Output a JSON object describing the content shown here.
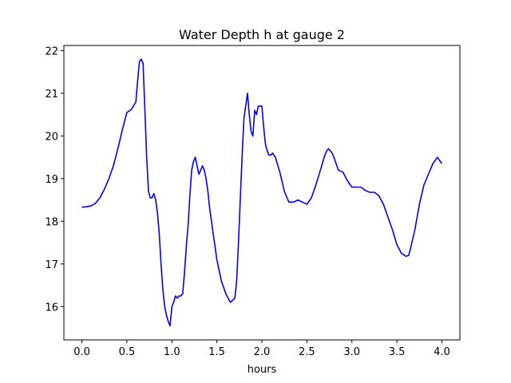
{
  "chart_data": {
    "type": "line",
    "title": "Water Depth h at gauge 2",
    "xlabel": "hours",
    "ylabel": "",
    "xlim": [
      -0.2,
      4.2
    ],
    "ylim": [
      15.22,
      22.12
    ],
    "xticks": [
      0.0,
      0.5,
      1.0,
      1.5,
      2.0,
      2.5,
      3.0,
      3.5,
      4.0
    ],
    "xtick_labels": [
      "0.0",
      "0.5",
      "1.0",
      "1.5",
      "2.0",
      "2.5",
      "3.0",
      "3.5",
      "4.0"
    ],
    "yticks": [
      16,
      17,
      18,
      19,
      20,
      21,
      22
    ],
    "ytick_labels": [
      "16",
      "17",
      "18",
      "19",
      "20",
      "21",
      "22"
    ],
    "grid": false,
    "series": [
      {
        "color": "#0000ff",
        "x": [
          0.0,
          0.05,
          0.1,
          0.15,
          0.2,
          0.25,
          0.3,
          0.35,
          0.4,
          0.45,
          0.5,
          0.55,
          0.6,
          0.62,
          0.64,
          0.66,
          0.68,
          0.7,
          0.72,
          0.74,
          0.76,
          0.78,
          0.8,
          0.82,
          0.84,
          0.86,
          0.88,
          0.9,
          0.92,
          0.94,
          0.96,
          0.98,
          1.0,
          1.02,
          1.04,
          1.06,
          1.08,
          1.1,
          1.12,
          1.14,
          1.16,
          1.18,
          1.2,
          1.22,
          1.24,
          1.26,
          1.28,
          1.3,
          1.32,
          1.34,
          1.36,
          1.38,
          1.4,
          1.42,
          1.44,
          1.46,
          1.48,
          1.5,
          1.52,
          1.55,
          1.6,
          1.65,
          1.7,
          1.72,
          1.74,
          1.76,
          1.78,
          1.8,
          1.82,
          1.84,
          1.86,
          1.88,
          1.9,
          1.92,
          1.94,
          1.96,
          1.98,
          2.0,
          2.02,
          2.04,
          2.06,
          2.08,
          2.1,
          2.12,
          2.15,
          2.2,
          2.25,
          2.3,
          2.35,
          2.4,
          2.45,
          2.5,
          2.55,
          2.6,
          2.65,
          2.7,
          2.72,
          2.74,
          2.76,
          2.78,
          2.8,
          2.85,
          2.9,
          2.95,
          3.0,
          3.05,
          3.1,
          3.15,
          3.2,
          3.25,
          3.3,
          3.35,
          3.4,
          3.45,
          3.5,
          3.55,
          3.6,
          3.63,
          3.65,
          3.7,
          3.75,
          3.8,
          3.85,
          3.9,
          3.95,
          4.0
        ],
        "y": [
          18.33,
          18.34,
          18.36,
          18.42,
          18.55,
          18.75,
          19.0,
          19.3,
          19.7,
          20.15,
          20.55,
          20.62,
          20.8,
          21.3,
          21.75,
          21.8,
          21.7,
          20.6,
          19.5,
          18.7,
          18.55,
          18.55,
          18.65,
          18.5,
          18.2,
          17.7,
          17.0,
          16.4,
          16.0,
          15.8,
          15.65,
          15.55,
          16.0,
          16.1,
          16.25,
          16.2,
          16.25,
          16.25,
          16.3,
          16.8,
          17.4,
          17.9,
          18.6,
          19.2,
          19.4,
          19.5,
          19.3,
          19.1,
          19.2,
          19.3,
          19.2,
          19.0,
          18.7,
          18.3,
          18.0,
          17.7,
          17.4,
          17.1,
          16.9,
          16.6,
          16.3,
          16.1,
          16.2,
          16.6,
          17.5,
          18.5,
          19.5,
          20.4,
          20.7,
          21.0,
          20.5,
          20.1,
          20.0,
          20.6,
          20.5,
          20.7,
          20.7,
          20.7,
          20.2,
          19.8,
          19.65,
          19.55,
          19.55,
          19.6,
          19.5,
          19.15,
          18.7,
          18.45,
          18.45,
          18.5,
          18.45,
          18.4,
          18.55,
          18.85,
          19.2,
          19.55,
          19.65,
          19.7,
          19.65,
          19.6,
          19.5,
          19.2,
          19.15,
          18.95,
          18.8,
          18.8,
          18.8,
          18.72,
          18.68,
          18.68,
          18.6,
          18.4,
          18.1,
          17.8,
          17.45,
          17.25,
          17.18,
          17.2,
          17.35,
          17.8,
          18.4,
          18.85,
          19.1,
          19.35,
          19.5,
          19.35
        ]
      }
    ]
  }
}
